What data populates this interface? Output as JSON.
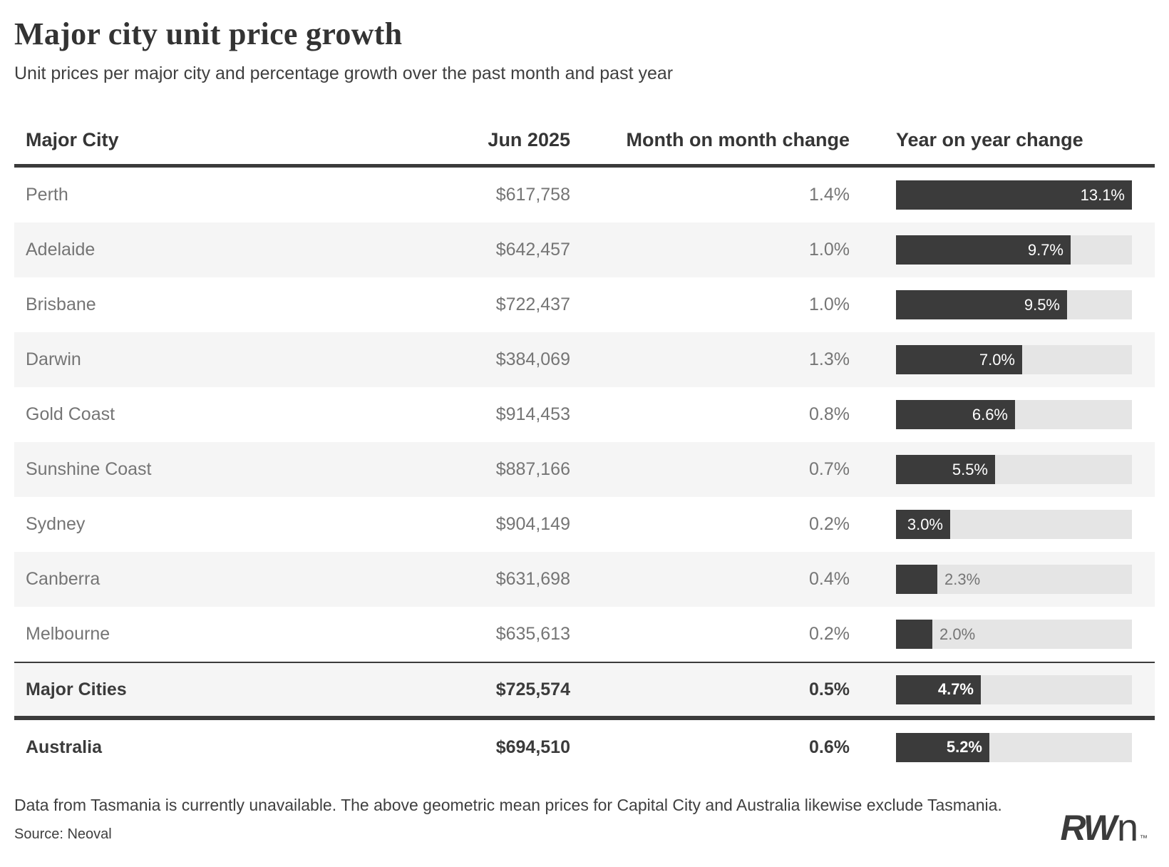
{
  "header": {
    "title": "Major city unit price growth",
    "subtitle": "Unit prices per major city and percentage growth over the past month and past year"
  },
  "table": {
    "columns": [
      "Major City",
      "Jun 2025",
      "Month on month change",
      "Year on year change"
    ],
    "bar_max": 13.1,
    "rows": [
      {
        "city": "Perth",
        "price": "$617,758",
        "mom": "1.4%",
        "yoy": 13.1,
        "yoy_label": "13.1%",
        "variant": ""
      },
      {
        "city": "Adelaide",
        "price": "$642,457",
        "mom": "1.0%",
        "yoy": 9.7,
        "yoy_label": "9.7%",
        "variant": ""
      },
      {
        "city": "Brisbane",
        "price": "$722,437",
        "mom": "1.0%",
        "yoy": 9.5,
        "yoy_label": "9.5%",
        "variant": ""
      },
      {
        "city": "Darwin",
        "price": "$384,069",
        "mom": "1.3%",
        "yoy": 7.0,
        "yoy_label": "7.0%",
        "variant": ""
      },
      {
        "city": "Gold Coast",
        "price": "$914,453",
        "mom": "0.8%",
        "yoy": 6.6,
        "yoy_label": "6.6%",
        "variant": ""
      },
      {
        "city": "Sunshine Coast",
        "price": "$887,166",
        "mom": "0.7%",
        "yoy": 5.5,
        "yoy_label": "5.5%",
        "variant": ""
      },
      {
        "city": "Sydney",
        "price": "$904,149",
        "mom": "0.2%",
        "yoy": 3.0,
        "yoy_label": "3.0%",
        "variant": ""
      },
      {
        "city": "Canberra",
        "price": "$631,698",
        "mom": "0.4%",
        "yoy": 2.3,
        "yoy_label": "2.3%",
        "variant": ""
      },
      {
        "city": "Melbourne",
        "price": "$635,613",
        "mom": "0.2%",
        "yoy": 2.0,
        "yoy_label": "2.0%",
        "variant": ""
      },
      {
        "city": "Major Cities",
        "price": "$725,574",
        "mom": "0.5%",
        "yoy": 4.7,
        "yoy_label": "4.7%",
        "variant": "subtotal"
      },
      {
        "city": "Australia",
        "price": "$694,510",
        "mom": "0.6%",
        "yoy": 5.2,
        "yoy_label": "5.2%",
        "variant": "total"
      }
    ]
  },
  "footer": {
    "note": "Data from Tasmania is currently unavailable. The above geometric mean prices for Capital City and Australia likewise exclude Tasmania.",
    "source": "Source: Neoval",
    "logo_rw": "RW",
    "logo_n": "n",
    "logo_tm": "™"
  },
  "colors": {
    "bar_fill": "#3b3b3b",
    "bar_track": "#e5e5e5",
    "row_stripe": "#f5f5f5",
    "muted_text": "#757575",
    "dark_text": "#3b3b3b"
  },
  "chart_data": {
    "type": "table",
    "title": "Major city unit price growth",
    "subtitle": "Unit prices per major city and percentage growth over the past month and past year",
    "columns": [
      "Major City",
      "Jun 2025",
      "Month on month change",
      "Year on year change"
    ],
    "categories": [
      "Perth",
      "Adelaide",
      "Brisbane",
      "Darwin",
      "Gold Coast",
      "Sunshine Coast",
      "Sydney",
      "Canberra",
      "Melbourne",
      "Major Cities",
      "Australia"
    ],
    "series": [
      {
        "name": "Jun 2025 price",
        "values": [
          617758,
          642457,
          722437,
          384069,
          914453,
          887166,
          904149,
          631698,
          635613,
          725574,
          694510
        ]
      },
      {
        "name": "Month on month change %",
        "values": [
          1.4,
          1.0,
          1.0,
          1.3,
          0.8,
          0.7,
          0.2,
          0.4,
          0.2,
          0.5,
          0.6
        ]
      },
      {
        "name": "Year on year change %",
        "values": [
          13.1,
          9.7,
          9.5,
          7.0,
          6.6,
          5.5,
          3.0,
          2.3,
          2.0,
          4.7,
          5.2
        ]
      }
    ],
    "bar_column": "Year on year change",
    "bar_max": 13.1,
    "bar_unit": "%",
    "legend_position": "none",
    "grid": false
  }
}
